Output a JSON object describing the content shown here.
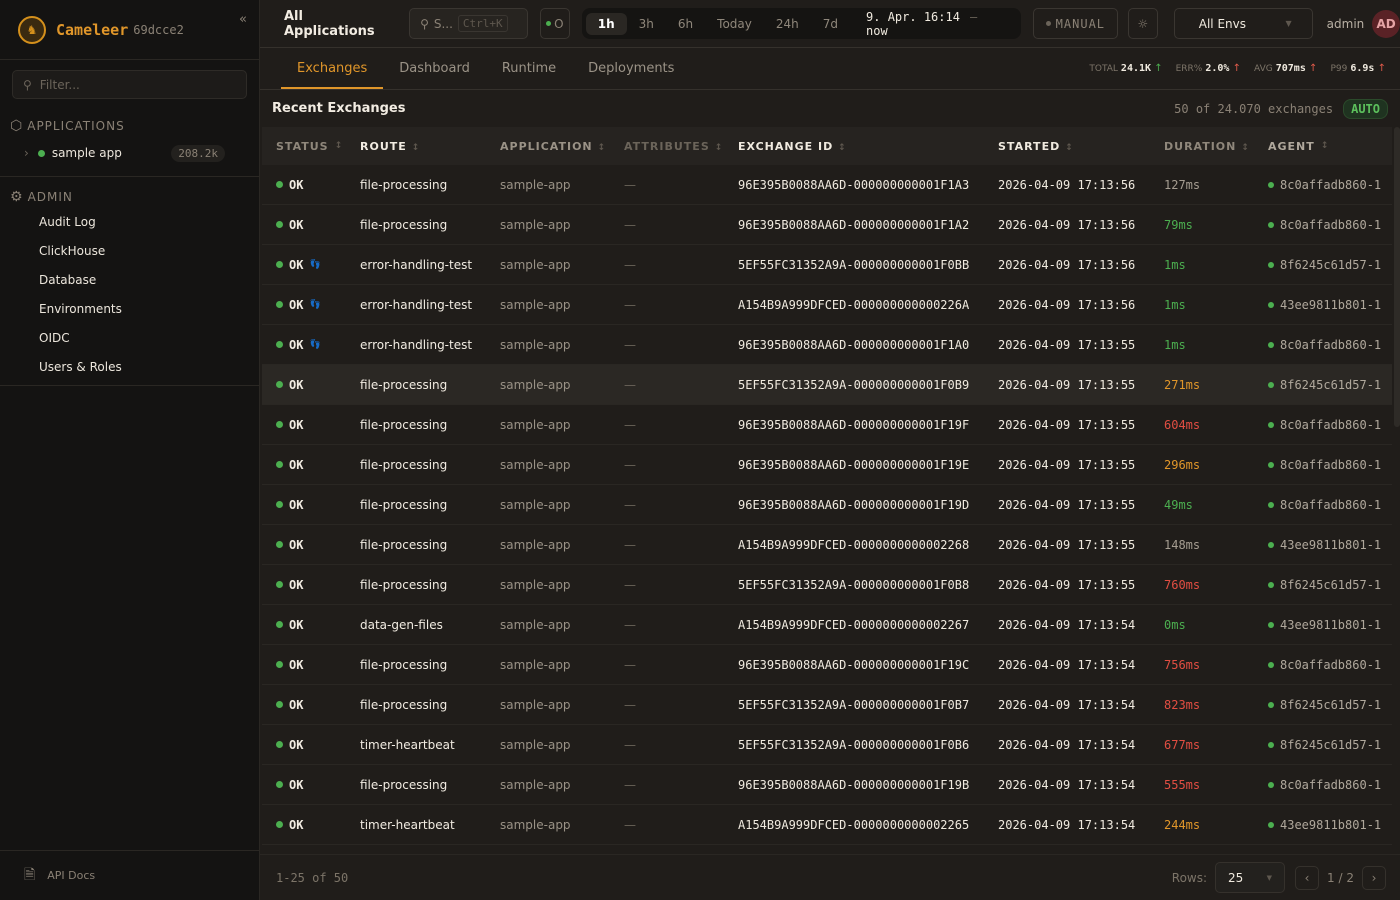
{
  "sidebar": {
    "brand": "Cameleer",
    "version": "69dcce2",
    "filter_placeholder": "Filter...",
    "applications_title": "APPLICATIONS",
    "apps": [
      {
        "name": "sample app",
        "count": "208.2k",
        "status": "green"
      }
    ],
    "admin_title": "ADMIN",
    "admin_items": [
      "Audit Log",
      "ClickHouse",
      "Database",
      "Environments",
      "OIDC",
      "Users & Roles"
    ],
    "api_docs": "API Docs"
  },
  "topbar": {
    "title": "All Applications",
    "search_placeholder": "S...",
    "search_shortcut": "Ctrl+K",
    "live_label": "O",
    "ranges": [
      "1h",
      "3h",
      "6h",
      "Today",
      "24h",
      "7d"
    ],
    "active_range": "1h",
    "date_from": "9. Apr. 16:14",
    "date_sep": "–",
    "date_to": "now",
    "refresh_mode": "MANUAL",
    "environment": "All Envs",
    "user": "admin",
    "avatar_initials": "AD"
  },
  "tabs": [
    "Exchanges",
    "Dashboard",
    "Runtime",
    "Deployments"
  ],
  "active_tab": "Exchanges",
  "kpis": [
    {
      "label": "TOTAL",
      "value": "24.1K",
      "trend": "up",
      "color": "#4caf50"
    },
    {
      "label": "ERR%",
      "value": "2.0%",
      "trend": "up",
      "color": "#e25b4b"
    },
    {
      "label": "AVG",
      "value": "707ms",
      "trend": "up",
      "color": "#e25b4b"
    },
    {
      "label": "P99",
      "value": "6.9s",
      "trend": "up",
      "color": "#e25b4b"
    }
  ],
  "list": {
    "title": "Recent Exchanges",
    "count_text": "50 of 24.070 exchanges",
    "auto_label": "AUTO"
  },
  "table": {
    "columns": [
      "STATUS",
      "ROUTE",
      "APPLICATION",
      "ATTRIBUTES",
      "EXCHANGE ID",
      "STARTED",
      "DURATION",
      "AGENT"
    ],
    "rows": [
      {
        "status": "OK",
        "trace": false,
        "route": "file-processing",
        "app": "sample-app",
        "attributes": "—",
        "id": "96E395B0088AA6D-000000000001F1A3",
        "started": "2026-04-09 17:13:56",
        "duration": "127ms",
        "tone": "normal",
        "agent": "8c0affadb860-1"
      },
      {
        "status": "OK",
        "trace": false,
        "route": "file-processing",
        "app": "sample-app",
        "attributes": "—",
        "id": "96E395B0088AA6D-000000000001F1A2",
        "started": "2026-04-09 17:13:56",
        "duration": "79ms",
        "tone": "fast",
        "agent": "8c0affadb860-1"
      },
      {
        "status": "OK",
        "trace": true,
        "route": "error-handling-test",
        "app": "sample-app",
        "attributes": "—",
        "id": "5EF55FC31352A9A-000000000001F0BB",
        "started": "2026-04-09 17:13:56",
        "duration": "1ms",
        "tone": "fast",
        "agent": "8f6245c61d57-1"
      },
      {
        "status": "OK",
        "trace": true,
        "route": "error-handling-test",
        "app": "sample-app",
        "attributes": "—",
        "id": "A154B9A999DFCED-000000000000226A",
        "started": "2026-04-09 17:13:56",
        "duration": "1ms",
        "tone": "fast",
        "agent": "43ee9811b801-1"
      },
      {
        "status": "OK",
        "trace": true,
        "route": "error-handling-test",
        "app": "sample-app",
        "attributes": "—",
        "id": "96E395B0088AA6D-000000000001F1A0",
        "started": "2026-04-09 17:13:55",
        "duration": "1ms",
        "tone": "fast",
        "agent": "8c0affadb860-1"
      },
      {
        "status": "OK",
        "trace": false,
        "route": "file-processing",
        "app": "sample-app",
        "attributes": "—",
        "id": "5EF55FC31352A9A-000000000001F0B9",
        "started": "2026-04-09 17:13:55",
        "duration": "271ms",
        "tone": "warn",
        "agent": "8f6245c61d57-1"
      },
      {
        "status": "OK",
        "trace": false,
        "route": "file-processing",
        "app": "sample-app",
        "attributes": "—",
        "id": "96E395B0088AA6D-000000000001F19F",
        "started": "2026-04-09 17:13:55",
        "duration": "604ms",
        "tone": "slow",
        "agent": "8c0affadb860-1"
      },
      {
        "status": "OK",
        "trace": false,
        "route": "file-processing",
        "app": "sample-app",
        "attributes": "—",
        "id": "96E395B0088AA6D-000000000001F19E",
        "started": "2026-04-09 17:13:55",
        "duration": "296ms",
        "tone": "warn",
        "agent": "8c0affadb860-1"
      },
      {
        "status": "OK",
        "trace": false,
        "route": "file-processing",
        "app": "sample-app",
        "attributes": "—",
        "id": "96E395B0088AA6D-000000000001F19D",
        "started": "2026-04-09 17:13:55",
        "duration": "49ms",
        "tone": "fast",
        "agent": "8c0affadb860-1"
      },
      {
        "status": "OK",
        "trace": false,
        "route": "file-processing",
        "app": "sample-app",
        "attributes": "—",
        "id": "A154B9A999DFCED-0000000000002268",
        "started": "2026-04-09 17:13:55",
        "duration": "148ms",
        "tone": "normal",
        "agent": "43ee9811b801-1"
      },
      {
        "status": "OK",
        "trace": false,
        "route": "file-processing",
        "app": "sample-app",
        "attributes": "—",
        "id": "5EF55FC31352A9A-000000000001F0B8",
        "started": "2026-04-09 17:13:55",
        "duration": "760ms",
        "tone": "slow",
        "agent": "8f6245c61d57-1"
      },
      {
        "status": "OK",
        "trace": false,
        "route": "data-gen-files",
        "app": "sample-app",
        "attributes": "—",
        "id": "A154B9A999DFCED-0000000000002267",
        "started": "2026-04-09 17:13:54",
        "duration": "0ms",
        "tone": "fast",
        "agent": "43ee9811b801-1"
      },
      {
        "status": "OK",
        "trace": false,
        "route": "file-processing",
        "app": "sample-app",
        "attributes": "—",
        "id": "96E395B0088AA6D-000000000001F19C",
        "started": "2026-04-09 17:13:54",
        "duration": "756ms",
        "tone": "slow",
        "agent": "8c0affadb860-1"
      },
      {
        "status": "OK",
        "trace": false,
        "route": "file-processing",
        "app": "sample-app",
        "attributes": "—",
        "id": "5EF55FC31352A9A-000000000001F0B7",
        "started": "2026-04-09 17:13:54",
        "duration": "823ms",
        "tone": "slow",
        "agent": "8f6245c61d57-1"
      },
      {
        "status": "OK",
        "trace": false,
        "route": "timer-heartbeat",
        "app": "sample-app",
        "attributes": "—",
        "id": "5EF55FC31352A9A-000000000001F0B6",
        "started": "2026-04-09 17:13:54",
        "duration": "677ms",
        "tone": "slow",
        "agent": "8f6245c61d57-1"
      },
      {
        "status": "OK",
        "trace": false,
        "route": "file-processing",
        "app": "sample-app",
        "attributes": "—",
        "id": "96E395B0088AA6D-000000000001F19B",
        "started": "2026-04-09 17:13:54",
        "duration": "555ms",
        "tone": "slow",
        "agent": "8c0affadb860-1"
      },
      {
        "status": "OK",
        "trace": false,
        "route": "timer-heartbeat",
        "app": "sample-app",
        "attributes": "—",
        "id": "A154B9A999DFCED-0000000000002265",
        "started": "2026-04-09 17:13:54",
        "duration": "244ms",
        "tone": "warn",
        "agent": "43ee9811b801-1"
      }
    ]
  },
  "footer": {
    "range": "1-25 of 50",
    "rows_label": "Rows:",
    "rows_value": "25",
    "page": "1",
    "page_sep": "/",
    "pages": "2"
  },
  "colors": {
    "accent": "#e0962a",
    "ok": "#4caf50",
    "error": "#e24e42"
  }
}
